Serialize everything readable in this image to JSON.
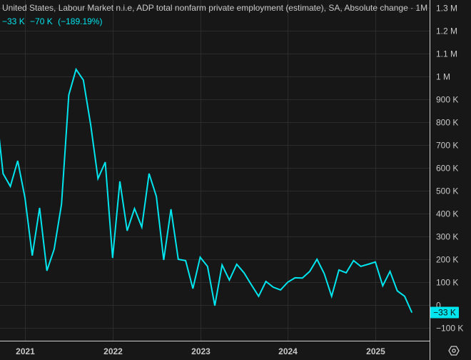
{
  "header": {
    "title": "United States, Labour Market n.i.e, ADP total nonfarm private employment (estimate), SA, Absolute change · 1M",
    "last_value": "−33 K",
    "change": "−70 K",
    "change_pct": "(−189.19%)"
  },
  "colors": {
    "background": "#171717",
    "line": "#00e5ee",
    "grid": "#2c2c2c",
    "axis": "#d0d0d0",
    "text": "#c8c8c8"
  },
  "settings_icon": "gear-hexagon-icon",
  "chart_data": {
    "type": "line",
    "title": "United States, Labour Market n.i.e, ADP total nonfarm private employment (estimate), SA, Absolute change · 1M",
    "unit": "thousands",
    "y_axis_side": "right",
    "ylim": [
      -150,
      1340
    ],
    "grid": true,
    "y_ticks": [
      {
        "v": 1300,
        "label": "1.3 M"
      },
      {
        "v": 1200,
        "label": "1.2 M"
      },
      {
        "v": 1100,
        "label": "1.1 M"
      },
      {
        "v": 1000,
        "label": "1 M"
      },
      {
        "v": 900,
        "label": "900 K"
      },
      {
        "v": 800,
        "label": "800 K"
      },
      {
        "v": 700,
        "label": "700 K"
      },
      {
        "v": 600,
        "label": "600 K"
      },
      {
        "v": 500,
        "label": "500 K"
      },
      {
        "v": 400,
        "label": "400 K"
      },
      {
        "v": 300,
        "label": "300 K"
      },
      {
        "v": 200,
        "label": "200 K"
      },
      {
        "v": 100,
        "label": "100 K"
      },
      {
        "v": 0,
        "label": "0"
      },
      {
        "v": -100,
        "label": "−100 K"
      }
    ],
    "x_ticks": [
      "2021",
      "2022",
      "2023",
      "2024",
      "2025"
    ],
    "last_label": "−33 K",
    "series": [
      {
        "x": [
          "2020-09",
          "2020-10",
          "2020-11",
          "2020-12",
          "2021-01",
          "2021-02",
          "2021-03",
          "2021-04",
          "2021-05",
          "2021-06",
          "2021-07",
          "2021-08",
          "2021-09",
          "2021-10",
          "2021-11",
          "2021-12",
          "2022-01",
          "2022-02",
          "2022-03",
          "2022-04",
          "2022-05",
          "2022-06",
          "2022-07",
          "2022-08",
          "2022-09",
          "2022-10",
          "2022-11",
          "2022-12",
          "2023-01",
          "2023-02",
          "2023-03",
          "2023-04",
          "2023-05",
          "2023-06",
          "2023-07",
          "2023-08",
          "2023-09",
          "2023-10",
          "2023-11",
          "2023-12",
          "2024-01",
          "2024-02",
          "2024-03",
          "2024-04",
          "2024-05",
          "2024-06",
          "2024-07",
          "2024-08",
          "2024-09",
          "2024-10",
          "2024-11",
          "2024-12",
          "2025-01",
          "2025-02",
          "2025-03",
          "2025-04",
          "2025-05",
          "2025-06"
        ],
        "values": [
          870,
          575,
          519,
          631,
          469,
          216,
          425,
          150,
          244,
          441,
          919,
          1031,
          984,
          788,
          553,
          625,
          206,
          541,
          325,
          422,
          341,
          575,
          475,
          197,
          419,
          200,
          194,
          72,
          209,
          169,
          -3,
          175,
          109,
          178,
          141,
          89,
          38,
          103,
          78,
          66,
          100,
          119,
          118,
          147,
          200,
          137,
          38,
          153,
          141,
          194,
          169,
          178,
          188,
          84,
          147,
          62,
          38,
          -33
        ]
      }
    ]
  }
}
